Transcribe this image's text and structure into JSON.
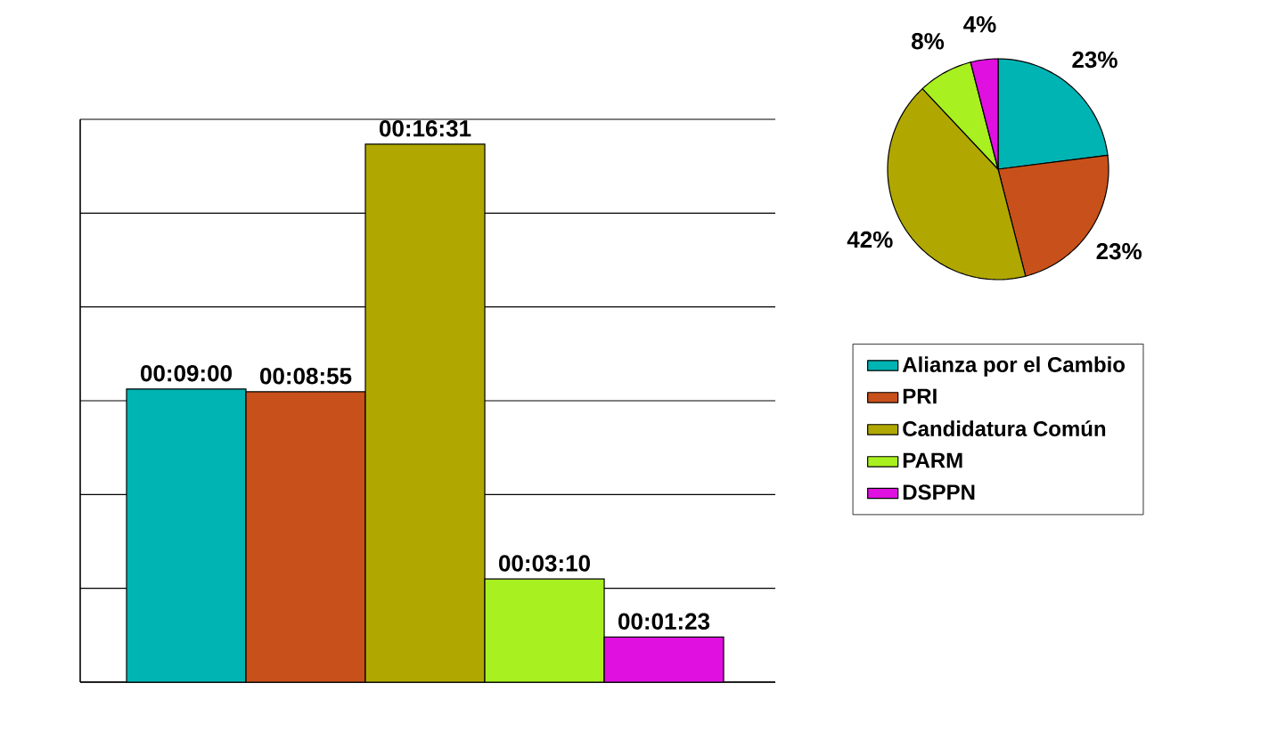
{
  "chart_data": [
    {
      "type": "bar",
      "categories": [
        null,
        null,
        null,
        null,
        null
      ],
      "values": [
        540,
        535,
        991,
        190,
        83
      ],
      "value_labels": [
        "00:09:00",
        "00:08:55",
        "00:16:31",
        "00:03:10",
        "00:01:23"
      ],
      "colors": [
        "#00b4b4",
        "#c8501a",
        "#b0a800",
        "#a8f020",
        "#e010e0"
      ],
      "ylim": [
        0,
        1036.8
      ],
      "yticks": [
        {
          "value": 0,
          "label": null
        },
        {
          "value": 172.8,
          "label": null
        },
        {
          "value": 345.6,
          "label": null
        },
        {
          "value": 518.4,
          "label": null
        },
        {
          "value": 691.2,
          "label": null
        },
        {
          "value": 864,
          "label": null
        },
        {
          "value": 1036.8,
          "label": null
        }
      ],
      "grid": "y"
    },
    {
      "type": "pie",
      "categories": [
        "Alianza por el Cambio",
        "PRI",
        "Candidatura Común",
        "PARM",
        "DSPPN"
      ],
      "values": [
        23,
        23,
        42,
        8,
        4
      ],
      "value_labels": [
        "23%",
        "23%",
        "42%",
        "8%",
        "4%"
      ],
      "colors": [
        "#00b4b4",
        "#c8501a",
        "#b0a800",
        "#a8f020",
        "#e010e0"
      ],
      "legend": "bottom"
    }
  ]
}
